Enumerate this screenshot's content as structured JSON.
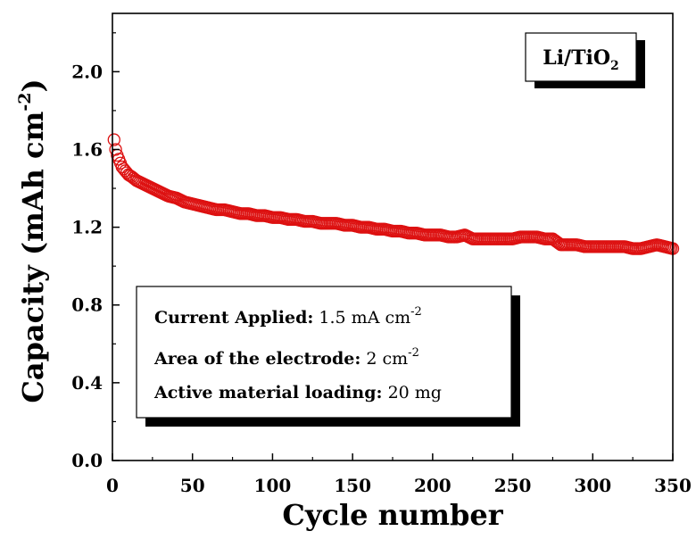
{
  "chart_data": {
    "type": "scatter",
    "xlabel": "Cycle number",
    "ylabel": {
      "main": "Capacity (mAh cm",
      "sup": "-2",
      "close": ")"
    },
    "xlim": [
      0,
      350
    ],
    "ylim": [
      0.0,
      2.3
    ],
    "xticks": [
      "0",
      "50",
      "100",
      "150",
      "200",
      "250",
      "300",
      "350"
    ],
    "yticks": [
      "0.0",
      "0.4",
      "0.8",
      "1.2",
      "1.6",
      "2.0"
    ],
    "marker": "open-circle",
    "series_color": "#dd1111",
    "legend_label": {
      "main": "Li/TiO",
      "sub": "2"
    },
    "series": [
      {
        "x": [
          1,
          2,
          3,
          4,
          5,
          6,
          8,
          10,
          12,
          15,
          20,
          25,
          30,
          35,
          40,
          45,
          50,
          55,
          60,
          65,
          70,
          75,
          80,
          85,
          90,
          95,
          100,
          105,
          110,
          115,
          120,
          125,
          130,
          135,
          140,
          145,
          150,
          155,
          160,
          165,
          170,
          175,
          180,
          185,
          190,
          195,
          200,
          205,
          210,
          215,
          220,
          225,
          230,
          235,
          240,
          245,
          250,
          255,
          260,
          265,
          270,
          275,
          280,
          285,
          290,
          295,
          300,
          305,
          310,
          315,
          320,
          325,
          330,
          335,
          340,
          345,
          350
        ],
        "y": [
          1.65,
          1.6,
          1.57,
          1.55,
          1.53,
          1.51,
          1.49,
          1.47,
          1.46,
          1.44,
          1.42,
          1.4,
          1.38,
          1.36,
          1.35,
          1.33,
          1.32,
          1.31,
          1.3,
          1.29,
          1.29,
          1.28,
          1.27,
          1.27,
          1.26,
          1.26,
          1.25,
          1.25,
          1.24,
          1.24,
          1.23,
          1.23,
          1.22,
          1.22,
          1.22,
          1.21,
          1.21,
          1.2,
          1.2,
          1.19,
          1.19,
          1.18,
          1.18,
          1.17,
          1.17,
          1.16,
          1.16,
          1.16,
          1.15,
          1.15,
          1.16,
          1.14,
          1.14,
          1.14,
          1.14,
          1.14,
          1.14,
          1.15,
          1.15,
          1.15,
          1.14,
          1.14,
          1.11,
          1.11,
          1.11,
          1.1,
          1.1,
          1.1,
          1.1,
          1.1,
          1.1,
          1.09,
          1.09,
          1.1,
          1.11,
          1.1,
          1.09
        ]
      }
    ],
    "annotations": [
      {
        "bold": "Current Applied:",
        "normal": " 1.5 mA cm",
        "sup": "-2"
      },
      {
        "bold": "Area of the electrode:",
        "normal": " 2 cm",
        "sup": "-2"
      },
      {
        "bold": "Active material loading:",
        "normal": " 20 mg",
        "sup": ""
      }
    ]
  }
}
